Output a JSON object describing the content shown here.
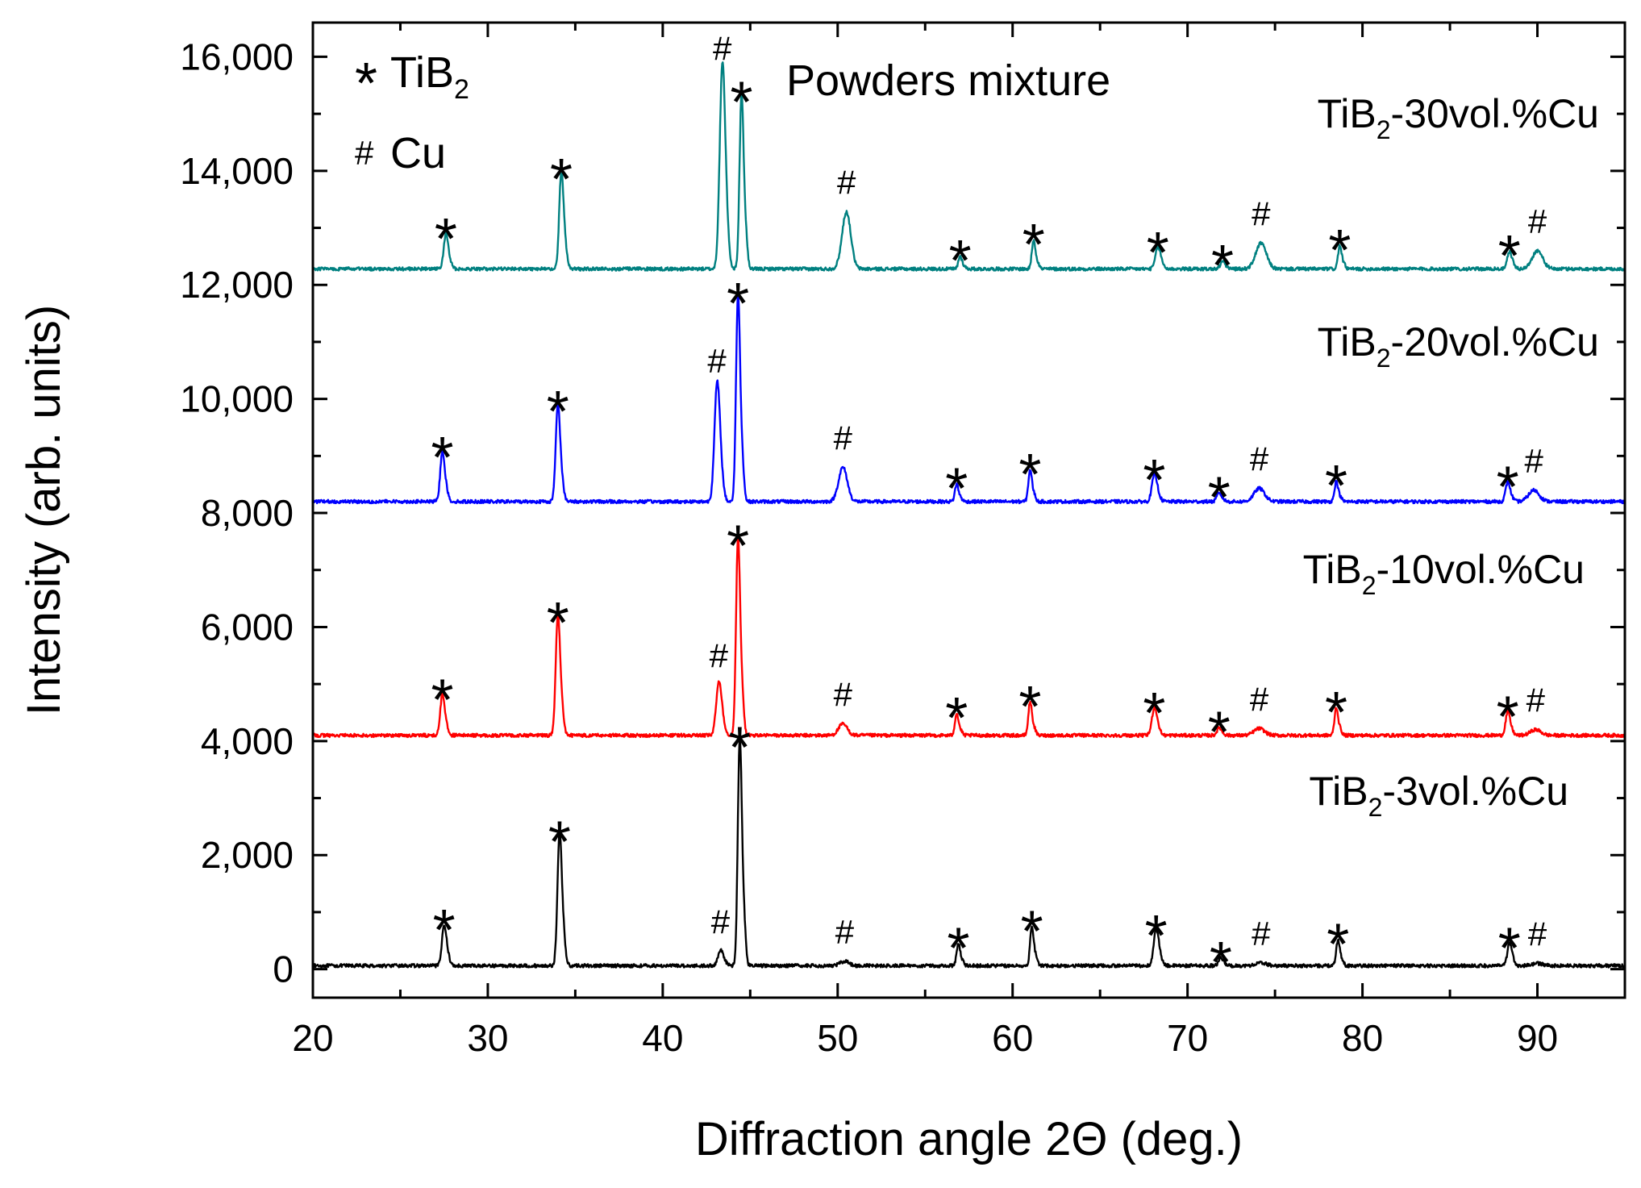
{
  "chart_data": {
    "type": "line",
    "title": "",
    "xlabel": "Diffraction angle 2Θ (deg.)",
    "ylabel": "Intensity (arb. units)",
    "xlim": [
      20,
      95
    ],
    "ylim": [
      -500,
      16600
    ],
    "x_ticks": [
      20,
      30,
      40,
      50,
      60,
      70,
      80,
      90
    ],
    "y_ticks": [
      0,
      2000,
      4000,
      6000,
      8000,
      10000,
      12000,
      14000,
      16000
    ],
    "y_tick_labels": [
      "0",
      "2,000",
      "4,000",
      "6,000",
      "8,000",
      "10,000",
      "12,000",
      "14,000",
      "16,000"
    ],
    "x_tick_labels": [
      "20",
      "30",
      "40",
      "50",
      "60",
      "70",
      "80",
      "90"
    ],
    "legend": {
      "placement": "top-left",
      "entries": [
        {
          "symbol": "*",
          "label": "TiB",
          "subscript": "2"
        },
        {
          "symbol": "#",
          "label": "Cu"
        }
      ]
    },
    "annotation": "Powders mixture",
    "series": [
      {
        "name": "TiB2-3vol.%Cu",
        "label_main": "TiB",
        "label_sub": "2",
        "label_rest": "-3vol.%Cu",
        "color": "#000000",
        "baseline": 60,
        "peaks": [
          {
            "x": 27.5,
            "height": 700,
            "width": 0.12,
            "marker": "*"
          },
          {
            "x": 34.1,
            "height": 2250,
            "width": 0.12,
            "marker": "*"
          },
          {
            "x": 43.3,
            "height": 250,
            "width": 0.15,
            "marker": "#"
          },
          {
            "x": 44.4,
            "height": 3900,
            "width": 0.11,
            "marker": "*"
          },
          {
            "x": 50.4,
            "height": 80,
            "width": 0.25,
            "marker": "#"
          },
          {
            "x": 56.9,
            "height": 380,
            "width": 0.1,
            "marker": "*"
          },
          {
            "x": 61.1,
            "height": 680,
            "width": 0.1,
            "marker": "*"
          },
          {
            "x": 68.2,
            "height": 600,
            "width": 0.14,
            "marker": "*"
          },
          {
            "x": 71.9,
            "height": 130,
            "width": 0.12,
            "marker": "*"
          },
          {
            "x": 74.2,
            "height": 50,
            "width": 0.3,
            "marker": "#"
          },
          {
            "x": 78.6,
            "height": 450,
            "width": 0.1,
            "marker": "*"
          },
          {
            "x": 88.4,
            "height": 380,
            "width": 0.12,
            "marker": "*"
          },
          {
            "x": 90.0,
            "height": 40,
            "width": 0.3,
            "marker": "#"
          }
        ]
      },
      {
        "name": "TiB2-10vol.%Cu",
        "label_main": "TiB",
        "label_sub": "2",
        "label_rest": "-10vol.%Cu",
        "color": "#ff0000",
        "baseline": 4100,
        "peaks": [
          {
            "x": 27.4,
            "height": 700,
            "width": 0.12,
            "marker": "*"
          },
          {
            "x": 34.0,
            "height": 2050,
            "width": 0.12,
            "marker": "*"
          },
          {
            "x": 43.2,
            "height": 880,
            "width": 0.15,
            "marker": "#"
          },
          {
            "x": 44.3,
            "height": 3400,
            "width": 0.11,
            "marker": "*"
          },
          {
            "x": 50.3,
            "height": 200,
            "width": 0.25,
            "marker": "#"
          },
          {
            "x": 56.8,
            "height": 380,
            "width": 0.1,
            "marker": "*"
          },
          {
            "x": 61.0,
            "height": 580,
            "width": 0.1,
            "marker": "*"
          },
          {
            "x": 68.1,
            "height": 460,
            "width": 0.14,
            "marker": "*"
          },
          {
            "x": 71.8,
            "height": 130,
            "width": 0.12,
            "marker": "*"
          },
          {
            "x": 74.1,
            "height": 120,
            "width": 0.3,
            "marker": "#"
          },
          {
            "x": 78.5,
            "height": 480,
            "width": 0.1,
            "marker": "*"
          },
          {
            "x": 88.3,
            "height": 400,
            "width": 0.12,
            "marker": "*"
          },
          {
            "x": 89.9,
            "height": 100,
            "width": 0.3,
            "marker": "#"
          }
        ]
      },
      {
        "name": "TiB2-20vol.%Cu",
        "label_main": "TiB",
        "label_sub": "2",
        "label_rest": "-20vol.%Cu",
        "color": "#0000ff",
        "baseline": 8200,
        "peaks": [
          {
            "x": 27.4,
            "height": 850,
            "width": 0.12,
            "marker": "*"
          },
          {
            "x": 34.0,
            "height": 1650,
            "width": 0.12,
            "marker": "*"
          },
          {
            "x": 43.1,
            "height": 1950,
            "width": 0.15,
            "marker": "#"
          },
          {
            "x": 44.3,
            "height": 3550,
            "width": 0.11,
            "marker": "*"
          },
          {
            "x": 50.3,
            "height": 600,
            "width": 0.25,
            "marker": "#"
          },
          {
            "x": 56.8,
            "height": 300,
            "width": 0.1,
            "marker": "*"
          },
          {
            "x": 61.0,
            "height": 550,
            "width": 0.1,
            "marker": "*"
          },
          {
            "x": 68.1,
            "height": 450,
            "width": 0.14,
            "marker": "*"
          },
          {
            "x": 71.8,
            "height": 150,
            "width": 0.12,
            "marker": "*"
          },
          {
            "x": 74.1,
            "height": 230,
            "width": 0.3,
            "marker": "#"
          },
          {
            "x": 78.5,
            "height": 350,
            "width": 0.1,
            "marker": "*"
          },
          {
            "x": 88.3,
            "height": 330,
            "width": 0.12,
            "marker": "*"
          },
          {
            "x": 89.8,
            "height": 200,
            "width": 0.3,
            "marker": "#"
          }
        ]
      },
      {
        "name": "TiB2-30vol.%Cu",
        "label_main": "TiB",
        "label_sub": "2",
        "label_rest": "-30vol.%Cu",
        "color": "#008080",
        "baseline": 12280,
        "peaks": [
          {
            "x": 27.6,
            "height": 600,
            "width": 0.12,
            "marker": "*"
          },
          {
            "x": 34.2,
            "height": 1650,
            "width": 0.12,
            "marker": "*"
          },
          {
            "x": 43.4,
            "height": 3350,
            "width": 0.15,
            "marker": "#"
          },
          {
            "x": 44.5,
            "height": 3000,
            "width": 0.11,
            "marker": "*"
          },
          {
            "x": 50.5,
            "height": 1000,
            "width": 0.25,
            "marker": "#"
          },
          {
            "x": 57.0,
            "height": 220,
            "width": 0.1,
            "marker": "*"
          },
          {
            "x": 61.2,
            "height": 500,
            "width": 0.1,
            "marker": "*"
          },
          {
            "x": 68.3,
            "height": 360,
            "width": 0.14,
            "marker": "*"
          },
          {
            "x": 72.0,
            "height": 130,
            "width": 0.12,
            "marker": "*"
          },
          {
            "x": 74.2,
            "height": 450,
            "width": 0.3,
            "marker": "#"
          },
          {
            "x": 78.7,
            "height": 400,
            "width": 0.1,
            "marker": "*"
          },
          {
            "x": 88.4,
            "height": 300,
            "width": 0.12,
            "marker": "*"
          },
          {
            "x": 90.0,
            "height": 320,
            "width": 0.3,
            "marker": "#"
          }
        ]
      }
    ]
  }
}
